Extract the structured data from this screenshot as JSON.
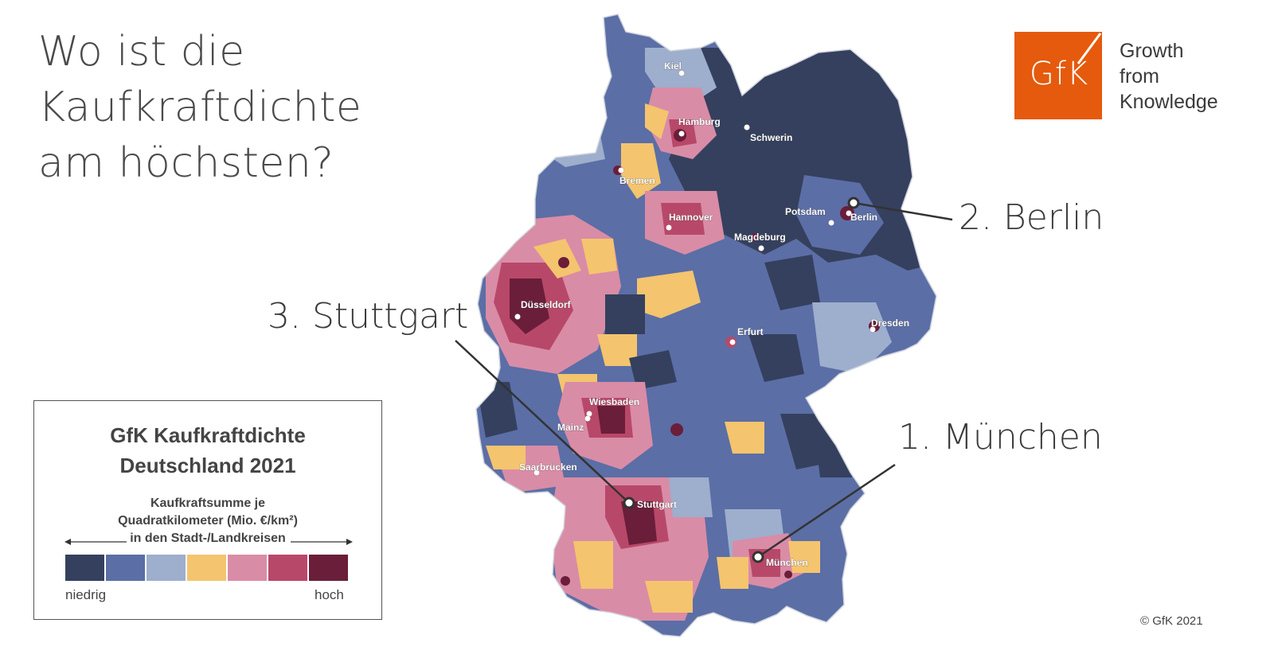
{
  "headline": [
    "Wo ist die",
    "Kaufkraftdichte",
    "am höchsten?"
  ],
  "logo": {
    "mark": "GfK",
    "tagline": [
      "Growth",
      "from",
      "Knowledge"
    ],
    "color": "#e55a0d"
  },
  "callouts": [
    {
      "id": "berlin",
      "label": "2. Berlin"
    },
    {
      "id": "stuttgart",
      "label": "3. Stuttgart"
    },
    {
      "id": "muenchen",
      "label": "1. München"
    }
  ],
  "cities": [
    {
      "name": "Kiel"
    },
    {
      "name": "Hamburg"
    },
    {
      "name": "Schwerin"
    },
    {
      "name": "Bremen"
    },
    {
      "name": "Hannover"
    },
    {
      "name": "Potsdam"
    },
    {
      "name": "Berlin"
    },
    {
      "name": "Magdeburg"
    },
    {
      "name": "Düsseldorf"
    },
    {
      "name": "Erfurt"
    },
    {
      "name": "Dresden"
    },
    {
      "name": "Wiesbaden"
    },
    {
      "name": "Mainz"
    },
    {
      "name": "Saarbrücken"
    },
    {
      "name": "Stuttgart"
    },
    {
      "name": "München"
    }
  ],
  "legend": {
    "title": [
      "GfK Kaufkraftdichte",
      "Deutschland 2021"
    ],
    "subtitle": [
      "Kaufkraftsumme je",
      "Quadratkilometer (Mio. €/km²)",
      "in den Stadt-/Landkreisen"
    ],
    "low_label": "niedrig",
    "high_label": "hoch",
    "colors": [
      "#35405e",
      "#5b6ea6",
      "#9eaecd",
      "#f4c46e",
      "#d98ca6",
      "#b84869",
      "#6a1e3a"
    ]
  },
  "copyright": "© GfK 2021"
}
